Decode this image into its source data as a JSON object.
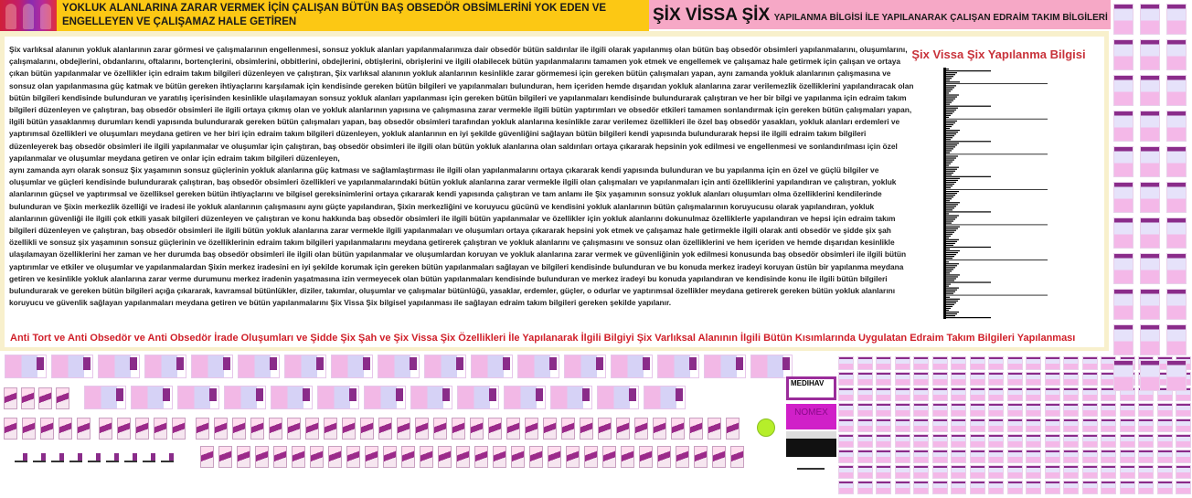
{
  "header": {
    "left_title": "YOKLUK ALANLARINA ZARAR VERMEK İÇİN ÇALIŞAN BÜTÜN BAŞ OBSEDÖR OBSİMLERİNİ YOK EDEN VE ENGELLEYEN VE ÇALIŞAMAZ HALE GETİREN",
    "right_title_big": "ŞİX VİSSA ŞİX",
    "right_title_small": "YAPILANMA BİLGİSİ İLE YAPILANARAK ÇALIŞAN EDRAİM TAKIM BİLGİLERİ",
    "colors": {
      "yellow": "#fcc814",
      "pink": "#f6a8c6",
      "accent_red": "#c8323a"
    }
  },
  "body": {
    "paragraphs": [
      "Şix varlıksal alanının yokluk alanlarının zarar görmesi ve çalışmalarının engellenmesi, sonsuz yokluk alanları yapılanmalarımıza dair obsedör bütün saldırılar ile ilgili olarak yapılanmış olan bütün baş obsedör obsimleri yapılanmalarını, oluşumlarını, çalışmalarını, obdejlerini, obdanlarını, oftalarını, bortençlerini, obsimlerini, obbitlerini, obdejlerini, obtişlerini, obrişlerini ve ilgili olabilecek bütün yapılanmalarını tamamen yok etmek ve engellemek ve çalışamaz hale getirmek için çalışan ve ortaya çıkan bütün yapılanmalar ve özellikler için edraim takım bilgileri düzenleyen ve çalıştıran, Şix varlıksal alanının yokluk alanlarının kesinlikle zarar görmemesi için gereken bütün çalışmaları yapan, aynı zamanda yokluk alanlarının çalışmasına ve sonsuz olan yapılanmasına güç katmak ve bütün gereken ihtiyaçlarını karşılamak için kendisinde gereken bütün bilgileri ve yapılanmaları bulunduran, hem içeriden hemde dışarıdan yokluk alanlarına zarar verilemezlik özelliklerini yapılandıracak olan bütün bilgileri kendisinde bulunduran ve yaratılış içerisinden kesinlikle ulaşılamayan sonsuz yokluk alanları yapılanması için gereken bütün bilgileri ve yapılanmaları kendisinde bulundurarak çalıştıran ve her bir bilgi ve yapılanma için edraim takım bilgileri düzenleyen ve çalıştıran, baş obsedör obsimleri ile ilgili ortaya çıkmış olan ve yokluk alanlarının yapısına ve çalışmasına zarar vermekle ilgili bütün yaptırımları ve obsedör etkileri tamamen sonlandırmak için gereken bütün çalışmaları yapan, ilgili bütün yasaklanmış durumları kendi yapısında bulundurarak gereken bütün çalışmaları yapan, baş obsedör obsimleri tarafından yokluk alanlarına kesinlikle zarar verilemez özellikleri ile özel baş obsedör yasakları, yokluk alanları erdemleri ve yaptırımsal özellikleri ve oluşumları meydana getiren ve her biri için edraim takım bilgileri düzenleyen, yokluk alanlarının en iyi şekilde güvenliğini sağlayan bütün bilgileri kendi yapısında bulundurarak hepsi ile ilgili edraim takım bilgileri düzenleyerek baş obsedör obsimleri ile ilgili yapılanmalar ve oluşumlar için çalıştıran, baş obsedör obsimleri ile ilgili olan bütün yokluk alanlarına olan saldırıları ortaya çıkararak hepsinin yok edilmesi ve engellenmesi ve sonlandırılması için özel yapılanmalar ve oluşumlar meydana getiren ve onlar için edraim takım bilgileri düzenleyen,",
      " aynı zamanda ayrı olarak sonsuz Şix yaşamının sonsuz güçlerinin yokluk alanlarına güç katması ve sağlamlaştırması ile ilgili olan yapılanmalarını ortaya çıkararak kendi yapısında bulunduran ve bu yapılanma için en özel ve güçlü bilgiler ve oluşumlar ve güçleri kendisinde bulundurarak çalıştıran, baş obsedör obsimleri özellikleri ve yapılanmalarındaki bütün yokluk alanlarına zarar vermekle ilgili olan çalışmaları ve yapılanmaları için anti özelliklerini yapılandıran ve çalıştıran, yokluk alanlarının güçsel ve yaptırımsal ve özelliksel gereken bütün ihtiyaçlarını ve bilgisel gereksinimlerini ortaya çıkararak kendi yapısında çalıştıran ve tam anlamı ile Şix yaşamının sonsuz yokluk alanları oluşumları olma özelliklerini kendilerinde bulunduran ve Şixin merkezlik özelliği ve iradesi ile yokluk alanlarının çalışmasını aynı güçte yapılandıran, Şixin merkezliğini ve koruyucu gücünü ve kendisini yokluk alanlarının bütün çalışmalarının koruyucusu olarak yapılandıran, yokluk alanlarının  güvenliği ile ilgili çok etkili yasak bilgileri düzenleyen ve çalıştıran ve konu hakkında baş obsedör obsimleri ile ilgili bütün yapılanmalar ve özellikler için yokluk alanlarını dokunulmaz özelliklerle yapılandıran ve hepsi için edraim takım bilgileri düzenleyen ve çalıştıran, baş obsedör obsimleri ile ilgili bütün yokluk alanlarına zarar vermekle ilgili yapılanmaları ve oluşumları ortaya  çıkararak hepsini yok etmek ve çalışamaz hale getirmekle ilgili olarak anti obsedör ve şidde şix şah özellikli ve sonsuz şix yaşamının sonsuz güçlerinin ve özelliklerinin edraim takım bilgileri yapılanmalarını meydana getirerek çalıştıran ve yokluk alanlarını ve çalışmasını ve sonsuz olan özelliklerini ve hem içeriden ve hemde dışarıdan kesinlikle ulaşılamayan özelliklerini her zaman ve her durumda baş obsedör obsimleri ile ilgili olan bütün yapılanmalar ve oluşumlardan koruyan ve yokluk alanlarına zarar vermek ve güvenliğinin yok edilmesi konusunda baş obsedör obsimleri ile ilgili bütün yaptırımlar ve etkiler ve oluşumlar ve yapılanmalardan Şixin merkez iradesini en iyi şekilde korumak için gereken bütün yapılanmaları sağlayan ve bilgileri kendisinde bulunduran ve bu konuda merkez iradeyi koruyan üstün bir yapılanma meydana getiren ve kesinlikle yokluk alanlarına zarar verme durumunu merkez iradenin yaşatmasına izin vermeyecek olan bütün yapılanmaları kendisinde bulunduran ve merkez iradeyi bu konuda yapılandıran ve kendisinde konu ile ilgili bütün bilgileri bulundurarak ve gereken bütün bilgileri açığa çıkararak, kavramsal bütünlükler, diziler, takımlar, oluşumlar ve çalışmalar bütünlüğü, yasaklar, erdemler, güçler, o odurlar ve yaptırımsal özellikler meydana getirerek gereken bütün yokluk alanlarını koruyucu ve güvenlik sağlayan yapılanmaları meydana getiren ve bütün yapılanmalarını Şix Vissa Şix bilgisel yapılanması ile sağlayan edraim takım bilgileri gereken şekilde yapılanır."
    ]
  },
  "side": {
    "title": "Şix Vissa Şix Yapılanma Bilgisi"
  },
  "footer_title": "Anti Tort ve Anti Obsedör ve Anti Obsedör İrade Oluşumları ve Şidde Şix Şah ve Şix Vissa Şix Özellikleri İle Yapılanarak İlgili Bilgiyi Şix Varlıksal Alanının İlgili Bütün Kısımlarında Uygulatan Edraim Takım Bilgileri Yapılanması",
  "ads": {
    "ad1": "MEDIHAV",
    "ad2": "NOMEX"
  }
}
